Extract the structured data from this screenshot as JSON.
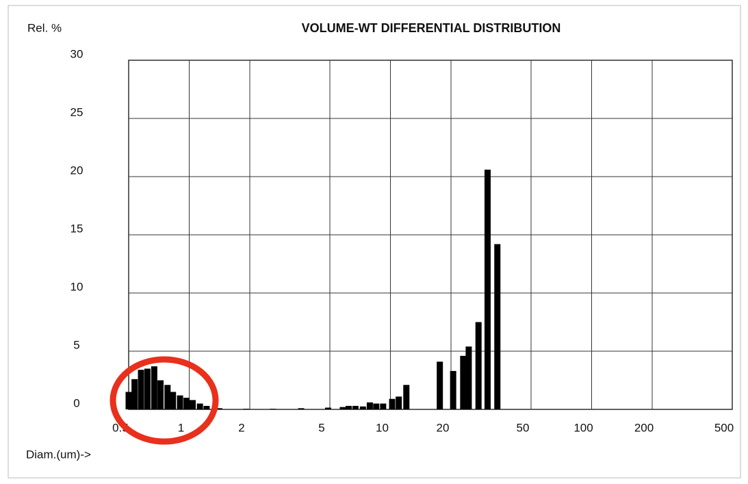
{
  "chart_data": {
    "type": "bar",
    "title": "VOLUME-WT DIFFERENTIAL DISTRIBUTION",
    "y_label": "Rel. %",
    "x_label": "Diam.(um)->",
    "x": [
      0.5,
      0.535,
      0.576,
      0.62,
      0.67,
      0.72,
      0.78,
      0.83,
      0.9,
      0.97,
      1.04,
      1.13,
      1.22,
      1.41,
      1.92,
      2.61,
      3.6,
      4.9,
      5.8,
      6.2,
      6.7,
      7.3,
      7.9,
      8.5,
      9.2,
      10.2,
      11.0,
      12.0,
      17.6,
      20.5,
      23.0,
      24.5,
      27.4,
      30.4,
      34.0
    ],
    "values": [
      1.5,
      2.6,
      3.4,
      3.5,
      3.7,
      2.5,
      2.1,
      1.5,
      1.2,
      1.0,
      0.8,
      0.5,
      0.3,
      0.1,
      0.05,
      0.05,
      0.1,
      0.15,
      0.2,
      0.3,
      0.3,
      0.25,
      0.6,
      0.5,
      0.5,
      0.9,
      1.1,
      2.1,
      4.1,
      3.3,
      4.6,
      5.4,
      7.5,
      20.6,
      14.2
    ],
    "color": "#000000",
    "xlim": [
      0.5,
      500
    ],
    "xticks": [
      0.5,
      1,
      2,
      5,
      10,
      20,
      50,
      100,
      200,
      500
    ],
    "xscale": "log",
    "ylim": [
      0,
      30
    ],
    "yticks": [
      0,
      5,
      10,
      15,
      20,
      25,
      30
    ],
    "grid": true
  }
}
